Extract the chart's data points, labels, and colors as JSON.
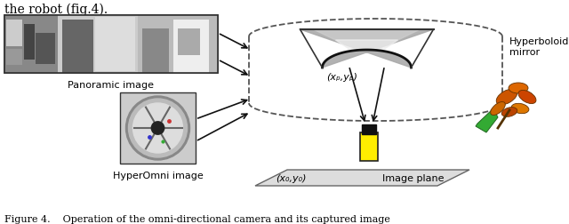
{
  "title_text": "the robot (fig.4).",
  "caption": "Figure 4.    Operation of the omni-directional camera and its captured image",
  "panoramic_label": "Panoramic image",
  "hyperomni_label": "HyperOmni image",
  "hyperboloidal_label": "Hyperboloidal\nmirror",
  "image_plane_label": "Image plane",
  "xp_yp_label": "(xₚ,yₚ)",
  "x0_y0_label": "(x₀,y₀)",
  "bg_color": "#ffffff",
  "ellipse_dash_color": "#555555",
  "arrow_color": "#111111"
}
